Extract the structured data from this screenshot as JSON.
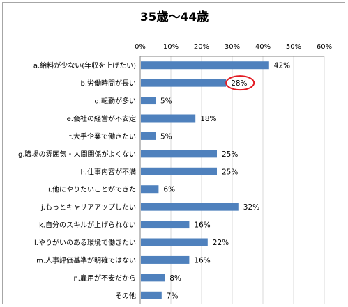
{
  "chart_data": {
    "type": "bar",
    "orientation": "horizontal",
    "title": "35歳～44歳",
    "xlim": [
      0,
      60
    ],
    "xticks": [
      "0%",
      "10%",
      "20%",
      "30%",
      "40%",
      "50%",
      "60%"
    ],
    "x_axis_position": "top",
    "categories": [
      "a.給料が少ない(年収を上げたい)",
      "b.労働時間が長い",
      "d.転勤が多い",
      "e.会社の経営が不安定",
      "f.大手企業で働きたい",
      "g.職場の雰囲気・人間関係がよくない",
      "h.仕事内容が不満",
      "i.他にやりたいことができた",
      "j.もっとキャリアアップしたい",
      "k.自分のスキルが上げられない",
      "l.やりがいのある環境で働きたい",
      "m.人事評価基準が明確ではない",
      "n.雇用が不安だから",
      "その他"
    ],
    "values": [
      42,
      28,
      5,
      18,
      5,
      25,
      25,
      6,
      32,
      16,
      22,
      16,
      8,
      7
    ],
    "value_labels": [
      "42%",
      "28%",
      "5%",
      "18%",
      "5%",
      "25%",
      "25%",
      "6%",
      "32%",
      "16%",
      "22%",
      "16%",
      "8%",
      "7%"
    ],
    "highlighted_index": 1,
    "bar_color": "#4f81bd",
    "highlight_color": "#e31b23",
    "grid": true,
    "legend": "none"
  }
}
